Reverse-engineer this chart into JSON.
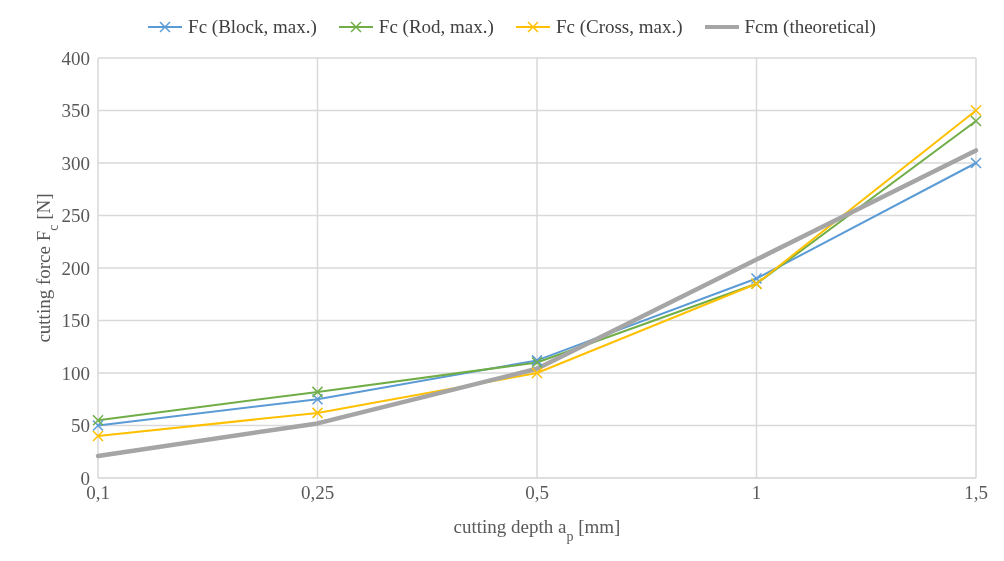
{
  "chart_data": {
    "type": "line",
    "xlabel": "cutting depth a$_{p}$ [mm]",
    "ylabel": "cutting force F$_{c}$ [N]",
    "categories": [
      "0,1",
      "0,25",
      "0,5",
      "1",
      "1,5"
    ],
    "series": [
      {
        "name": "Fc (Block, max.)",
        "color": "#5b9bd5",
        "values": [
          50,
          75,
          112,
          190,
          300
        ],
        "marker": "cross"
      },
      {
        "name": "Fc (Rod, max.)",
        "color": "#70ad47",
        "values": [
          55,
          82,
          110,
          185,
          340
        ],
        "marker": "cross"
      },
      {
        "name": "Fc (Cross, max.)",
        "color": "#ffc000",
        "values": [
          40,
          62,
          100,
          185,
          350
        ],
        "marker": "cross"
      },
      {
        "name": "Fcm (theoretical)",
        "color": "#a5a5a5",
        "values": [
          21,
          52,
          104,
          208,
          312
        ],
        "marker": "none"
      }
    ],
    "ylim": [
      0,
      400
    ],
    "yticks": [
      0,
      50,
      100,
      150,
      200,
      250,
      300,
      350,
      400
    ],
    "grid": true,
    "legend": "top",
    "line_style": "solid"
  }
}
